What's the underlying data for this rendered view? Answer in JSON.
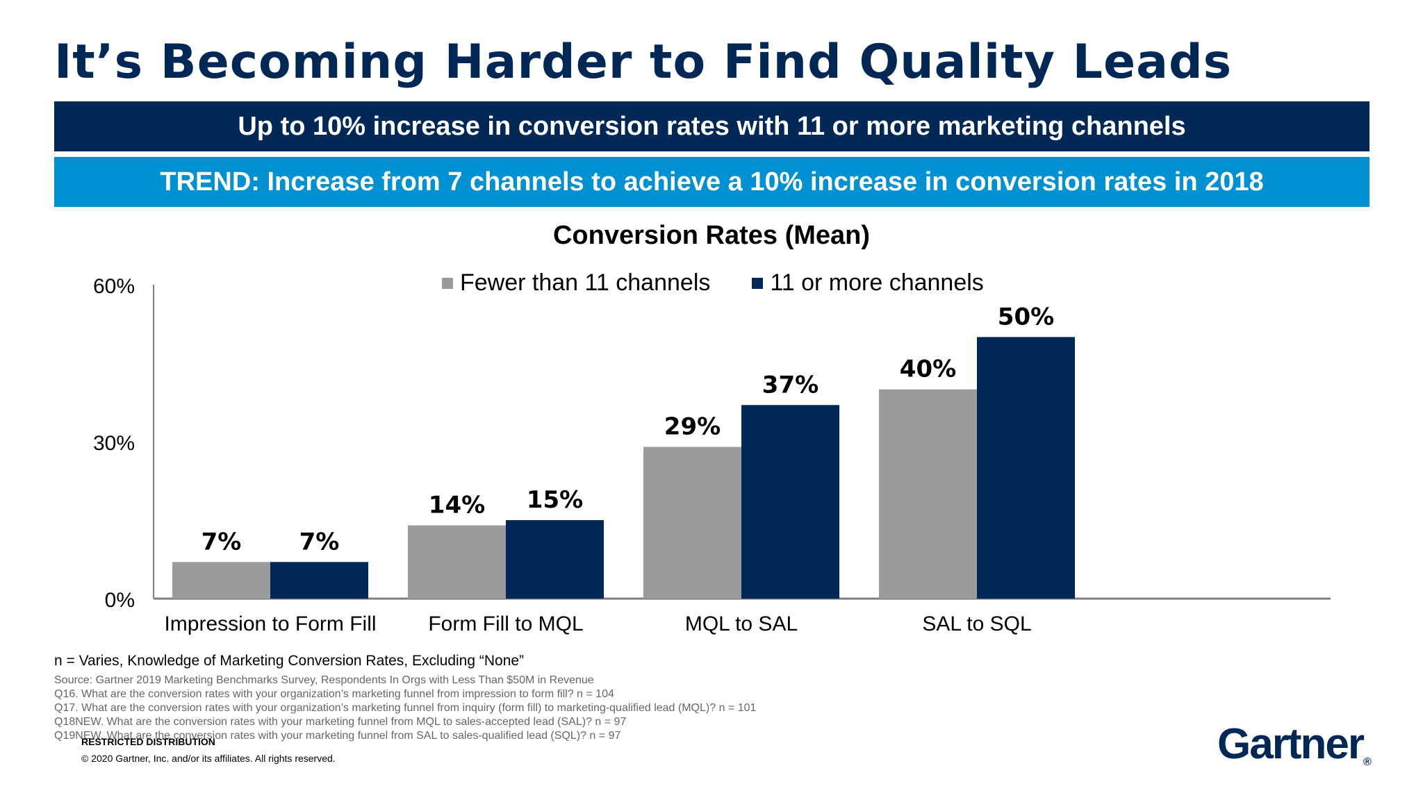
{
  "title": "It’s Becoming Harder to Find Quality Leads",
  "banner_primary": "Up to 10% increase in conversion rates with 11 or more marketing channels",
  "banner_trend": "TREND: Increase from 7 channels to achieve a 10% increase in conversion rates in 2018",
  "colors": {
    "navy": "#002856",
    "sky": "#0091d2",
    "gray": "#9b9b9b"
  },
  "chart_data": {
    "type": "bar",
    "title": "Conversion Rates (Mean)",
    "categories": [
      "Impression to Form Fill",
      "Form Fill to MQL",
      "MQL to SAL",
      "SAL to SQL"
    ],
    "series": [
      {
        "name": "Fewer than 11 channels",
        "values": [
          7,
          14,
          29,
          40
        ],
        "labels": [
          "7%",
          "14%",
          "29%",
          "40%"
        ],
        "color": "#9b9b9b"
      },
      {
        "name": "11 or more channels",
        "values": [
          7,
          15,
          37,
          50
        ],
        "labels": [
          "7%",
          "15%",
          "37%",
          "50%"
        ],
        "color": "#002856"
      }
    ],
    "ylim": [
      0,
      60
    ],
    "yticks": [
      "0%",
      "30%",
      "60%"
    ],
    "ytick_values": [
      0,
      30,
      60
    ],
    "legend_position": "top-center",
    "grid": false
  },
  "notes": {
    "n": "n = Varies, Knowledge of Marketing Conversion Rates, Excluding “None”",
    "source": "Source: Gartner 2019 Marketing Benchmarks Survey, Respondents In Orgs with Less Than $50M in Revenue",
    "q16": "Q16. What are the conversion rates with your organization’s marketing funnel from impression to form fill? n = 104",
    "q17": "Q17. What are the conversion rates with your organization’s marketing funnel from inquiry (form fill) to marketing-qualified lead (MQL)? n = 101",
    "q18": "Q18NEW. What are the conversion rates with your marketing funnel from MQL to sales-accepted lead (SAL)? n = 97",
    "q19": "Q19NEW. What are the conversion rates with your marketing funnel from SAL to sales-qualified lead (SQL)? n = 97"
  },
  "footer": {
    "restricted": "RESTRICTED DISTRIBUTION",
    "copyright": "© 2020 Gartner, Inc. and/or its affiliates. All rights reserved."
  },
  "logo": {
    "text": "Gartner",
    "mark": "®"
  }
}
